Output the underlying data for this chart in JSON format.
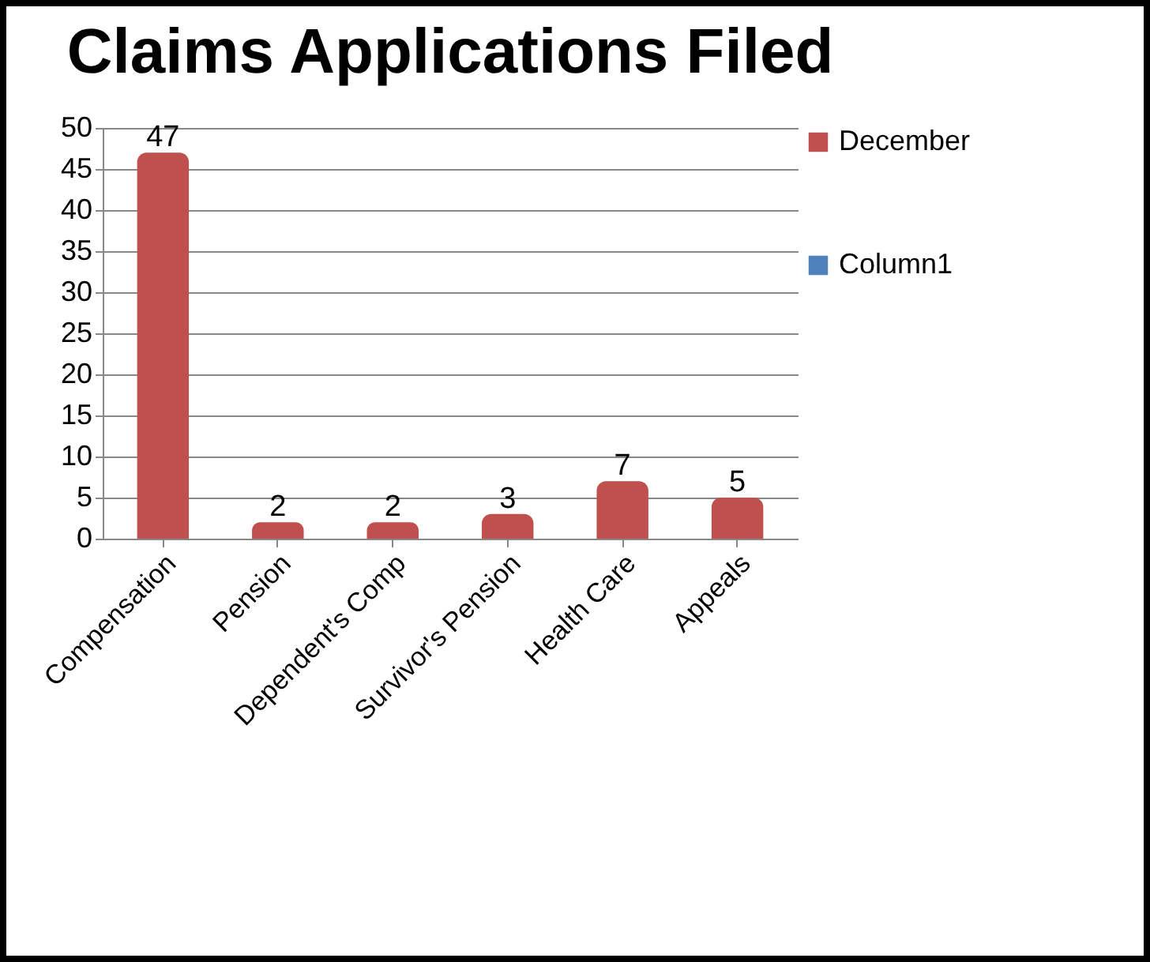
{
  "chart_data": {
    "type": "bar",
    "title": "Claims Applications Filed",
    "categories": [
      "Compensation",
      "Pension",
      "Dependent's Comp",
      "Survivor's Pension",
      "Health Care",
      "Appeals"
    ],
    "series": [
      {
        "name": "December",
        "color": "#c0504d",
        "values": [
          47,
          2,
          2,
          3,
          7,
          5
        ]
      },
      {
        "name": "Column1",
        "color": "#4f81bd",
        "values": [
          null,
          null,
          null,
          null,
          null,
          null
        ]
      }
    ],
    "ylim": [
      0,
      50
    ],
    "yticks": [
      0,
      5,
      10,
      15,
      20,
      25,
      30,
      35,
      40,
      45,
      50
    ],
    "grid": "y",
    "legend": "right",
    "data_labels": true
  }
}
